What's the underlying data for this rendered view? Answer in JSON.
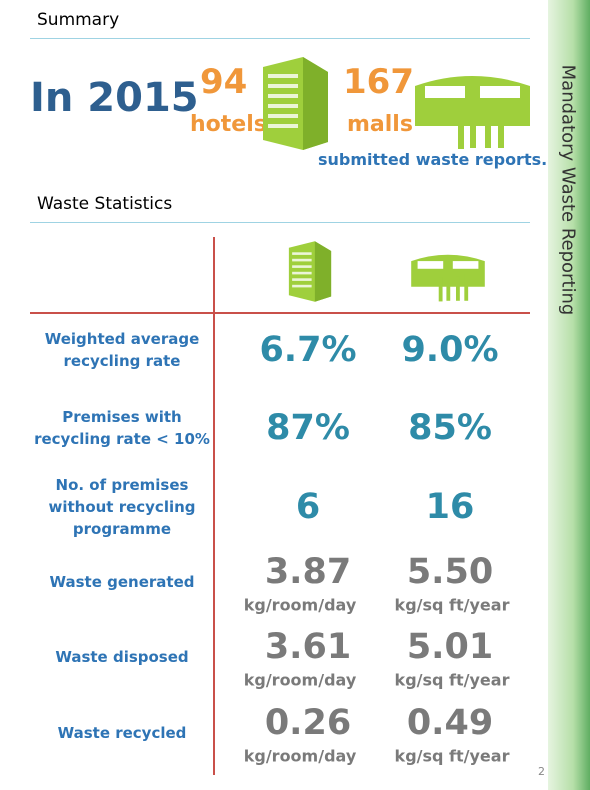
{
  "summary": {
    "heading": "Summary",
    "year": "In 2015",
    "hotels_count": "94",
    "hotels_label": "hotels",
    "malls_count": "167",
    "malls_label": "malls",
    "note": "submitted waste reports."
  },
  "stats": {
    "heading": "Waste Statistics",
    "rows": [
      {
        "label": "Weighted average recycling rate",
        "hotels": "6.7%",
        "malls": "9.0%"
      },
      {
        "label": "Premises with recycling rate < 10%",
        "hotels": "87%",
        "malls": "85%"
      },
      {
        "label": "No. of premises without recycling programme",
        "hotels": "6",
        "malls": "16"
      },
      {
        "label": "Waste generated",
        "hotels": "3.87",
        "malls": "5.50",
        "hotels_unit": "kg/room/day",
        "malls_unit": "kg/sq ft/year"
      },
      {
        "label": "Waste disposed",
        "hotels": "3.61",
        "malls": "5.01",
        "hotels_unit": "kg/room/day",
        "malls_unit": "kg/sq ft/year"
      },
      {
        "label": "Waste recycled",
        "hotels": "0.26",
        "malls": "0.49",
        "hotels_unit": "kg/room/day",
        "malls_unit": "kg/sq ft/year"
      }
    ]
  },
  "sidebar": {
    "title": "Mandatory Waste Reporting"
  },
  "page_number": "2"
}
